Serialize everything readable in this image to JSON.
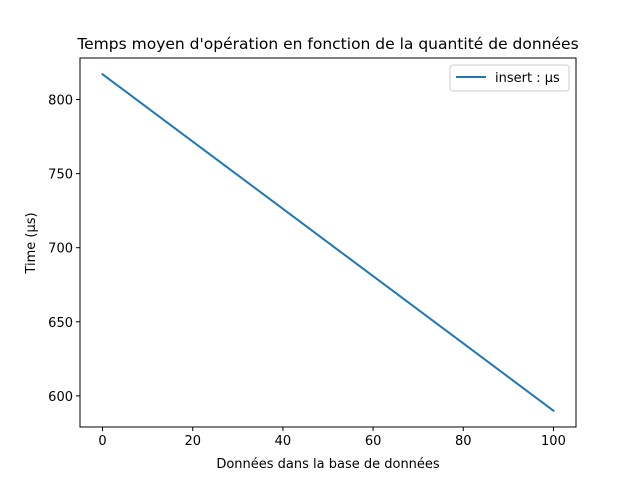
{
  "chart_data": {
    "type": "line",
    "title": "Temps moyen d'opération en fonction de la quantité de données",
    "xlabel": "Données dans la base de données",
    "ylabel": "Time (µs)",
    "xlim": [
      -5,
      105
    ],
    "ylim": [
      579,
      828
    ],
    "xticks": [
      0,
      20,
      40,
      60,
      80,
      100
    ],
    "yticks": [
      600,
      650,
      700,
      750,
      800
    ],
    "grid": false,
    "legend_position": "top-right",
    "series": [
      {
        "name": "insert : µs",
        "color": "#1f77b4",
        "x": [
          0,
          100
        ],
        "y": [
          817,
          590
        ]
      }
    ]
  }
}
